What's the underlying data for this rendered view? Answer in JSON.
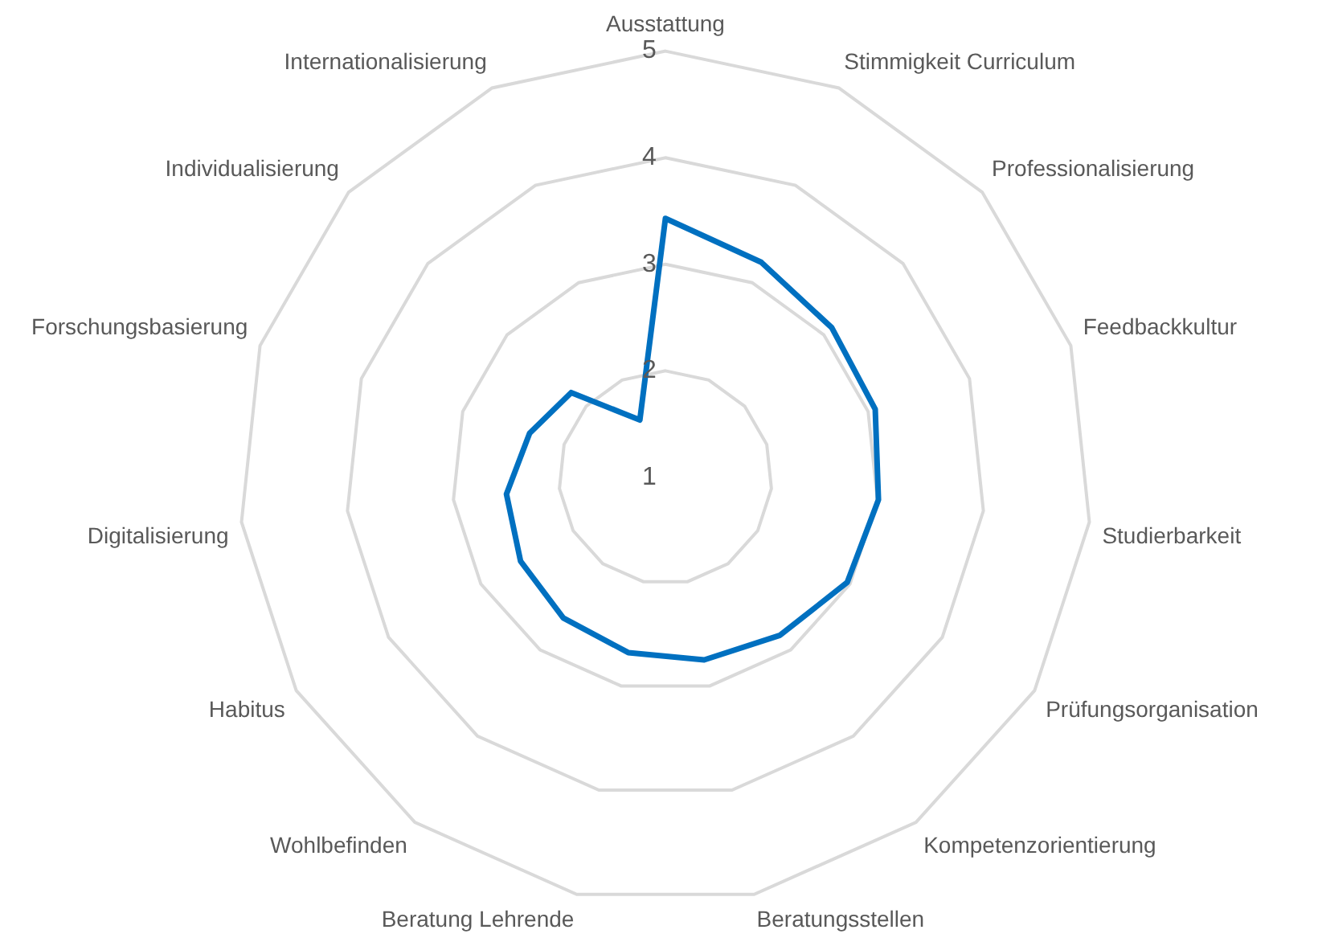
{
  "chart_data": {
    "type": "radar",
    "categories": [
      "Ausstattung",
      "Stimmigkeit Curriculum",
      "Professionalisierung",
      "Feedbackkultur",
      "Studierbarkeit",
      "Prüfungsorganisation",
      "Kompetenzorientierung",
      "Beratungsstellen",
      "Beratung Lehrende",
      "Wohlbefinden",
      "Habitus",
      "Digitalisierung",
      "Forschungsbasierung",
      "Individualisierung",
      "Internationalisierung"
    ],
    "series": [
      {
        "color": "#0070c0",
        "values": [
          3.43,
          3.21,
          3.1,
          3.07,
          3.01,
          2.97,
          2.83,
          2.75,
          2.68,
          2.63,
          2.57,
          2.5,
          2.34,
          2.19,
          1.59
        ]
      }
    ],
    "ylim": [
      1,
      5
    ],
    "yticks": [
      1,
      2,
      3,
      4,
      5
    ],
    "grid": true,
    "legend": false,
    "marker": "none",
    "line_style": "solid"
  }
}
